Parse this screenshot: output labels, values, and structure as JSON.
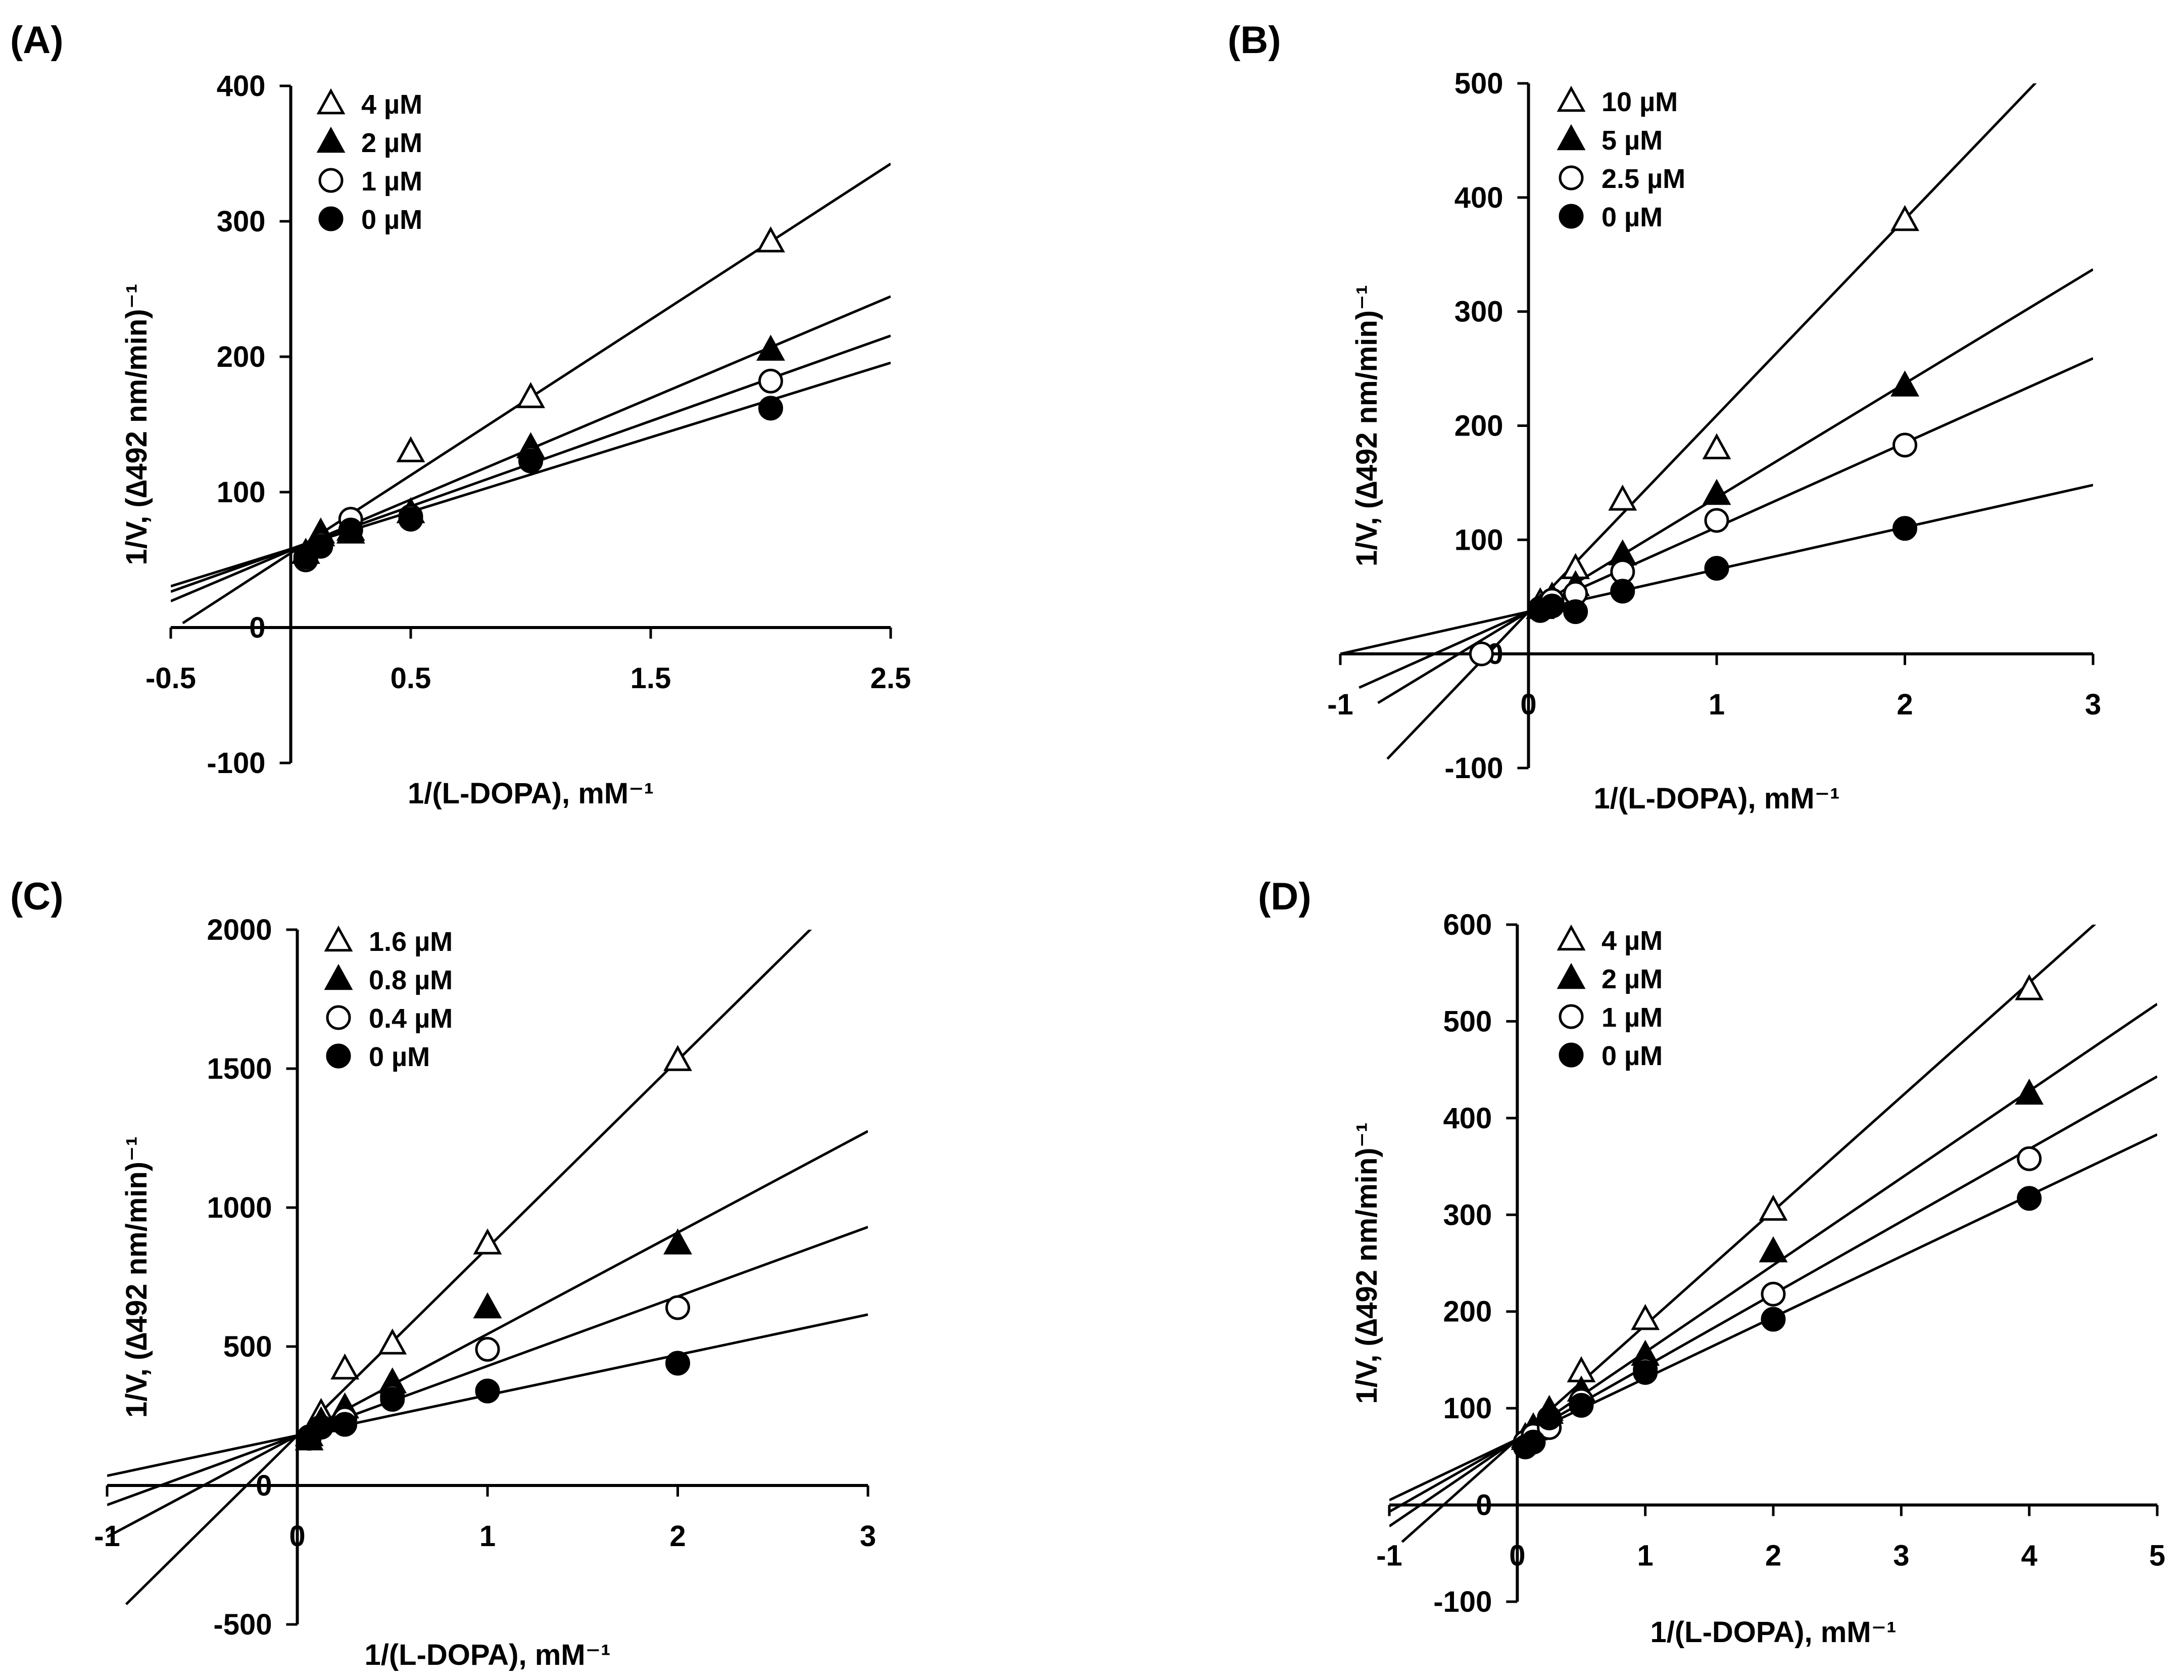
{
  "chart_data": [
    {
      "type": "line",
      "panel_label": "(A)",
      "xlabel": "1/(L-DOPA), mM⁻¹",
      "ylabel": "1/V, (∆492 nm/min)⁻¹",
      "xlim": [
        -0.5,
        2.5
      ],
      "ylim": [
        -100,
        400
      ],
      "xticks": [
        -0.5,
        0.5,
        1.5,
        2.5
      ],
      "xtick_labels": [
        "-0.5",
        "0.5",
        "1.5",
        "2.5"
      ],
      "yticks": [
        -100,
        0,
        100,
        200,
        300,
        400
      ],
      "ytick_labels": [
        "-100",
        "0",
        "100",
        "200",
        "300",
        "400"
      ],
      "legend_position": "top-left",
      "series": [
        {
          "name": "4 µM",
          "marker": "triangle-open",
          "x": [
            0.0625,
            0.125,
            0.25,
            0.5,
            1,
            2
          ],
          "y": [
            55,
            68,
            72,
            130,
            170,
            285
          ],
          "line": {
            "slope": 115,
            "intercept": 55,
            "x_start": -0.45,
            "x_end": 2.5
          }
        },
        {
          "name": "2 µM",
          "marker": "triangle-filled",
          "x": [
            0.0625,
            0.125,
            0.25,
            0.5,
            1,
            2
          ],
          "y": [
            55,
            70,
            70,
            85,
            133,
            205
          ],
          "line": {
            "slope": 75,
            "intercept": 57,
            "x_start": -0.5,
            "x_end": 2.5
          }
        },
        {
          "name": "1 µM",
          "marker": "circle-open",
          "x": [
            0.0625,
            0.125,
            0.25,
            0.5,
            1,
            2
          ],
          "y": [
            50,
            62,
            80,
            82,
            125,
            182
          ],
          "line": {
            "slope": 63,
            "intercept": 58,
            "x_start": -0.5,
            "x_end": 2.5
          }
        },
        {
          "name": "0 µM",
          "marker": "circle-filled",
          "x": [
            0.0625,
            0.125,
            0.25,
            0.5,
            1,
            2
          ],
          "y": [
            52,
            60,
            72,
            80,
            123,
            162
          ],
          "line": {
            "slope": 55,
            "intercept": 58,
            "x_start": -0.5,
            "x_end": 2.5
          }
        }
      ]
    },
    {
      "type": "line",
      "panel_label": "(B)",
      "xlabel": "1/(L-DOPA), mM⁻¹",
      "ylabel": "1/V, (∆492 nm/min)⁻¹",
      "xlim": [
        -1,
        3
      ],
      "ylim": [
        -100,
        500
      ],
      "xticks": [
        -1,
        0,
        1,
        2,
        3
      ],
      "xtick_labels": [
        "-1",
        "0",
        "1",
        "2",
        "3"
      ],
      "yticks": [
        -100,
        0,
        100,
        200,
        300,
        400,
        500
      ],
      "ytick_labels": [
        "-100",
        "0",
        "100",
        "200",
        "300",
        "400",
        "500"
      ],
      "legend_position": "top-left",
      "series": [
        {
          "name": "10 µM",
          "marker": "triangle-open",
          "x": [
            0.0625,
            0.125,
            0.25,
            0.5,
            1,
            2
          ],
          "y": [
            45,
            50,
            75,
            135,
            180,
            380
          ],
          "line": {
            "slope": 172,
            "intercept": 37,
            "x_start": -0.75,
            "x_end": 2.7
          }
        },
        {
          "name": "5 µM",
          "marker": "triangle-filled",
          "x": [
            0.0625,
            0.125,
            0.25,
            0.5,
            1,
            2
          ],
          "y": [
            40,
            48,
            60,
            87,
            140,
            235
          ],
          "line": {
            "slope": 100,
            "intercept": 37,
            "x_start": -0.8,
            "x_end": 3
          }
        },
        {
          "name": "2.5 µM",
          "marker": "circle-open",
          "x": [
            -0.25,
            0.0625,
            0.125,
            0.25,
            0.5,
            1,
            2
          ],
          "y": [
            0,
            40,
            47,
            53,
            72,
            117,
            183
          ],
          "line": {
            "slope": 74,
            "intercept": 37,
            "x_start": -0.9,
            "x_end": 3
          }
        },
        {
          "name": "0 µM",
          "marker": "circle-filled",
          "x": [
            0.0625,
            0.125,
            0.25,
            0.5,
            1,
            2
          ],
          "y": [
            38,
            42,
            37,
            55,
            75,
            110
          ],
          "line": {
            "slope": 37,
            "intercept": 37,
            "x_start": -1,
            "x_end": 3
          }
        }
      ]
    },
    {
      "type": "line",
      "panel_label": "(C)",
      "xlabel": "1/(L-DOPA), mM⁻¹",
      "ylabel": "1/V, (∆492 nm/min)⁻¹",
      "xlim": [
        -1,
        3
      ],
      "ylim": [
        -500,
        2000
      ],
      "xticks": [
        -1,
        0,
        1,
        2,
        3
      ],
      "xtick_labels": [
        "-1",
        "0",
        "1",
        "2",
        "3"
      ],
      "yticks": [
        -500,
        0,
        500,
        1000,
        1500,
        2000
      ],
      "ytick_labels": [
        "-500",
        "0",
        "500",
        "1000",
        "1500",
        "2000"
      ],
      "legend_position": "top-left",
      "series": [
        {
          "name": "1.6 µM",
          "marker": "triangle-open",
          "x": [
            0.0625,
            0.125,
            0.25,
            0.5,
            1,
            2
          ],
          "y": [
            180,
            260,
            420,
            510,
            870,
            1530
          ],
          "line": {
            "slope": 675,
            "intercept": 180,
            "x_start": -0.9,
            "x_end": 2.7
          }
        },
        {
          "name": "0.8 µM",
          "marker": "triangle-filled",
          "x": [
            0.0625,
            0.125,
            0.25,
            0.5,
            1,
            2
          ],
          "y": [
            165,
            230,
            280,
            370,
            640,
            870
          ],
          "line": {
            "slope": 365,
            "intercept": 180,
            "x_start": -1,
            "x_end": 3
          }
        },
        {
          "name": "0.4 µM",
          "marker": "circle-open",
          "x": [
            0.0625,
            0.125,
            0.25,
            0.5,
            1,
            2
          ],
          "y": [
            175,
            210,
            240,
            320,
            490,
            640
          ],
          "line": {
            "slope": 250,
            "intercept": 180,
            "x_start": -1,
            "x_end": 3
          }
        },
        {
          "name": "0 µM",
          "marker": "circle-filled",
          "x": [
            0.0625,
            0.125,
            0.25,
            0.5,
            1,
            2
          ],
          "y": [
            170,
            210,
            220,
            310,
            340,
            440
          ],
          "line": {
            "slope": 145,
            "intercept": 180,
            "x_start": -1,
            "x_end": 3
          }
        }
      ]
    },
    {
      "type": "line",
      "panel_label": "(D)",
      "xlabel": "1/(L-DOPA), mM⁻¹",
      "ylabel": "1/V, (∆492 nm/min)⁻¹",
      "xlim": [
        -1,
        5
      ],
      "ylim": [
        -100,
        600
      ],
      "xticks": [
        -1,
        0,
        1,
        2,
        3,
        4,
        5
      ],
      "xtick_labels": [
        "-1",
        "0",
        "1",
        "2",
        "3",
        "4",
        "5"
      ],
      "yticks": [
        -100,
        0,
        100,
        200,
        300,
        400,
        500,
        600
      ],
      "ytick_labels": [
        "-100",
        "0",
        "100",
        "200",
        "300",
        "400",
        "500",
        "600"
      ],
      "legend_position": "top-left",
      "series": [
        {
          "name": "4 µM",
          "marker": "triangle-open",
          "x": [
            0.0625,
            0.125,
            0.25,
            0.5,
            1,
            2,
            4
          ],
          "y": [
            70,
            80,
            98,
            138,
            192,
            305,
            533
          ],
          "line": {
            "slope": 118,
            "intercept": 68,
            "x_start": -0.9,
            "x_end": 4.6
          }
        },
        {
          "name": "2 µM",
          "marker": "triangle-filled",
          "x": [
            0.0625,
            0.125,
            0.25,
            0.5,
            1,
            2,
            4
          ],
          "y": [
            68,
            78,
            95,
            118,
            155,
            262,
            425
          ],
          "line": {
            "slope": 90,
            "intercept": 68,
            "x_start": -1,
            "x_end": 5
          }
        },
        {
          "name": "1 µM",
          "marker": "circle-open",
          "x": [
            0.0625,
            0.125,
            0.25,
            0.5,
            1,
            2,
            4
          ],
          "y": [
            65,
            72,
            80,
            108,
            140,
            218,
            358
          ],
          "line": {
            "slope": 75,
            "intercept": 68,
            "x_start": -1,
            "x_end": 5
          }
        },
        {
          "name": "0 µM",
          "marker": "circle-filled",
          "x": [
            0.0625,
            0.125,
            0.25,
            0.5,
            1,
            2,
            4
          ],
          "y": [
            60,
            65,
            90,
            103,
            137,
            192,
            317
          ],
          "line": {
            "slope": 63,
            "intercept": 68,
            "x_start": -1,
            "x_end": 5
          }
        }
      ]
    }
  ]
}
